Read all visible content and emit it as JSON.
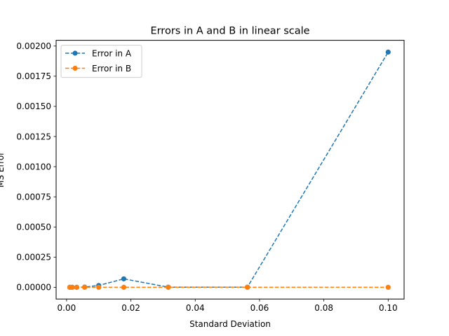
{
  "chart_data": {
    "type": "line",
    "title": "Errors in A and B in linear scale",
    "xlabel": "Standard Deviation",
    "ylabel": "MS Error",
    "xlim": [
      -0.00325,
      0.10495
    ],
    "ylim": [
      -9.75e-05,
      0.0020475
    ],
    "x_ticks": [
      0.0,
      0.02,
      0.04,
      0.06,
      0.08,
      0.1
    ],
    "x_tick_labels": [
      "0.00",
      "0.02",
      "0.04",
      "0.06",
      "0.08",
      "0.10"
    ],
    "y_ticks": [
      0.0,
      0.00025,
      0.0005,
      0.00075,
      0.001,
      0.00125,
      0.0015,
      0.00175,
      0.002
    ],
    "y_tick_labels": [
      "0.00000",
      "0.00025",
      "0.00050",
      "0.00075",
      "0.00100",
      "0.00125",
      "0.00150",
      "0.00175",
      "0.00200"
    ],
    "grid": false,
    "legend_position": "top-left",
    "x": [
      0.001,
      0.00178,
      0.00316,
      0.00562,
      0.01,
      0.01778,
      0.03162,
      0.05623,
      0.1
    ],
    "series": [
      {
        "name": "Error in A",
        "color": "#1f77b4",
        "values": [
          0.0,
          0.0,
          0.0,
          2e-06,
          1.5e-05,
          7e-05,
          1e-06,
          1e-06,
          0.00195
        ]
      },
      {
        "name": "Error in B",
        "color": "#ff7f0e",
        "values": [
          0.0,
          0.0,
          0.0,
          0.0,
          0.0,
          0.0,
          0.0,
          0.0,
          0.0
        ]
      }
    ]
  }
}
